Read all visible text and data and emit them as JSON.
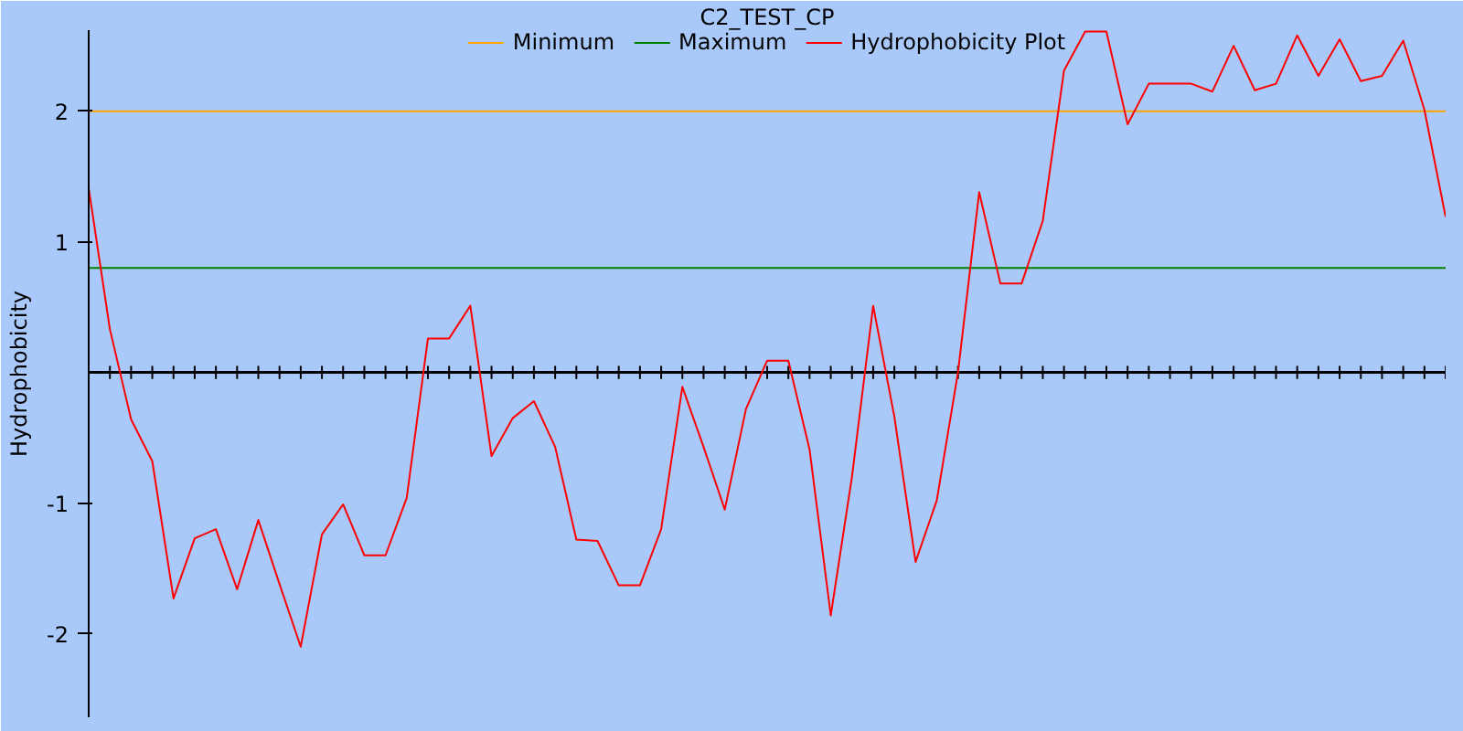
{
  "chart_data": {
    "type": "line",
    "title": "C2_TEST_CP",
    "ylabel": "Hydrophobicity",
    "categories": [
      null,
      null,
      null,
      null,
      null,
      null,
      null,
      null,
      null,
      null,
      null,
      null,
      null,
      null,
      null,
      null,
      null,
      null,
      null,
      null,
      null,
      null,
      null,
      null,
      null,
      null,
      null,
      null,
      null,
      null,
      null,
      null,
      null,
      null,
      null,
      null,
      null,
      null,
      null,
      null,
      null,
      null,
      null,
      null,
      null,
      null,
      null,
      null,
      null,
      null,
      null,
      null,
      null,
      null,
      null,
      null,
      null,
      null,
      null,
      null,
      null,
      null,
      null,
      null,
      null
    ],
    "series": [
      {
        "name": "Minimum",
        "color": "#ffa500",
        "values": [
          2,
          2,
          2,
          2,
          2,
          2,
          2,
          2,
          2,
          2,
          2,
          2,
          2,
          2,
          2,
          2,
          2,
          2,
          2,
          2,
          2,
          2,
          2,
          2,
          2,
          2,
          2,
          2,
          2,
          2,
          2,
          2,
          2,
          2,
          2,
          2,
          2,
          2,
          2,
          2,
          2,
          2,
          2,
          2,
          2,
          2,
          2,
          2,
          2,
          2,
          2,
          2,
          2,
          2,
          2,
          2,
          2,
          2,
          2,
          2,
          2,
          2,
          2,
          2,
          2
        ]
      },
      {
        "name": "Maximum",
        "color": "#008000",
        "values": [
          0.8,
          0.8,
          0.8,
          0.8,
          0.8,
          0.8,
          0.8,
          0.8,
          0.8,
          0.8,
          0.8,
          0.8,
          0.8,
          0.8,
          0.8,
          0.8,
          0.8,
          0.8,
          0.8,
          0.8,
          0.8,
          0.8,
          0.8,
          0.8,
          0.8,
          0.8,
          0.8,
          0.8,
          0.8,
          0.8,
          0.8,
          0.8,
          0.8,
          0.8,
          0.8,
          0.8,
          0.8,
          0.8,
          0.8,
          0.8,
          0.8,
          0.8,
          0.8,
          0.8,
          0.8,
          0.8,
          0.8,
          0.8,
          0.8,
          0.8,
          0.8,
          0.8,
          0.8,
          0.8,
          0.8,
          0.8,
          0.8,
          0.8,
          0.8,
          0.8,
          0.8,
          0.8,
          0.8,
          0.8,
          0.8
        ]
      },
      {
        "name": "Hydrophobicity Plot",
        "color": "#ff0000",
        "values": [
          1.41,
          0.33,
          -0.36,
          -0.68,
          -1.73,
          -1.27,
          -1.2,
          -1.66,
          -1.13,
          -1.62,
          -2.1,
          -1.24,
          -1.01,
          -1.4,
          -1.4,
          -0.96,
          0.26,
          0.26,
          0.51,
          -0.64,
          -0.35,
          -0.22,
          -0.57,
          -1.28,
          -1.29,
          -1.63,
          -1.63,
          -1.2,
          -0.11,
          -0.57,
          -1.05,
          -0.28,
          0.09,
          0.09,
          -0.59,
          -1.86,
          -0.8,
          0.51,
          -0.34,
          -1.45,
          -0.98,
          0.0,
          1.38,
          0.68,
          0.68,
          1.16,
          2.31,
          2.61,
          2.61,
          1.9,
          2.21,
          2.21,
          2.21,
          2.15,
          2.5,
          2.16,
          2.21,
          2.58,
          2.27,
          2.55,
          2.23,
          2.27,
          2.54,
          2.01,
          1.19
        ]
      }
    ],
    "ylim": [
      -2.64,
      2.62
    ],
    "yticks": [
      -2,
      -1,
      1,
      2
    ],
    "tick_labels": "y",
    "grid": false,
    "legend": "top"
  }
}
